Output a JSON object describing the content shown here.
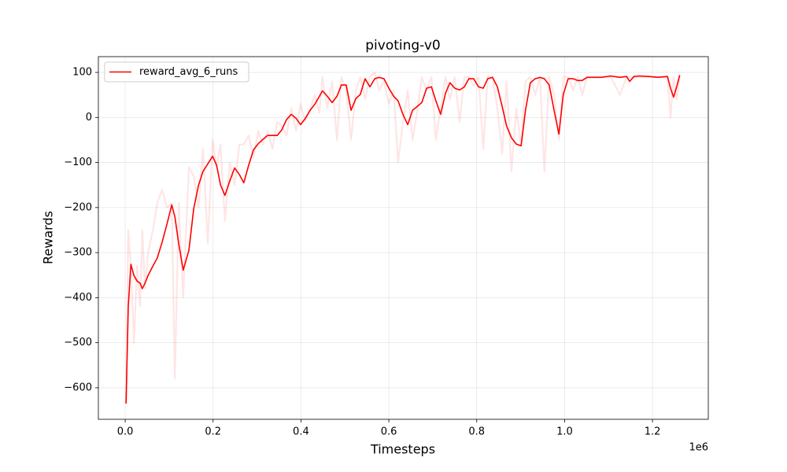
{
  "chart_data": {
    "type": "line",
    "title": "pivoting-v0",
    "x_label": "Timesteps",
    "y_label": "Rewards",
    "x_offset_label": "1e6",
    "xlim": [
      -61000,
      1327000
    ],
    "ylim": [
      -670,
      135
    ],
    "xticks": [
      {
        "value": 0,
        "label": "0.0"
      },
      {
        "value": 200000,
        "label": "0.2"
      },
      {
        "value": 400000,
        "label": "0.4"
      },
      {
        "value": 600000,
        "label": "0.6"
      },
      {
        "value": 800000,
        "label": "0.8"
      },
      {
        "value": 1000000,
        "label": "1.0"
      },
      {
        "value": 1200000,
        "label": "1.2"
      }
    ],
    "yticks": [
      {
        "value": -600,
        "label": "−600"
      },
      {
        "value": -500,
        "label": "−500"
      },
      {
        "value": -400,
        "label": "−400"
      },
      {
        "value": -300,
        "label": "−300"
      },
      {
        "value": -200,
        "label": "−200"
      },
      {
        "value": -100,
        "label": "−100"
      },
      0,
      100
    ],
    "grid": true,
    "legend_position": "upper-left",
    "x": [
      2000,
      7000,
      13000,
      20000,
      27000,
      34000,
      39000,
      45000,
      52000,
      63000,
      73000,
      84000,
      95000,
      106000,
      113000,
      122000,
      132000,
      145000,
      156000,
      167000,
      177000,
      188000,
      199000,
      208000,
      217000,
      227000,
      238000,
      249000,
      260000,
      270000,
      281000,
      292000,
      303000,
      313000,
      324000,
      335000,
      346000,
      356000,
      367000,
      378000,
      389000,
      399000,
      410000,
      421000,
      432000,
      442000,
      449000,
      460000,
      471000,
      482000,
      492000,
      503000,
      514000,
      525000,
      535000,
      546000,
      557000,
      568000,
      578000,
      589000,
      600000,
      611000,
      621000,
      632000,
      643000,
      654000,
      664000,
      675000,
      686000,
      697000,
      707000,
      718000,
      729000,
      739000,
      750000,
      761000,
      772000,
      782000,
      793000,
      804000,
      815000,
      825000,
      836000,
      847000,
      858000,
      868000,
      879000,
      890000,
      901000,
      911000,
      922000,
      933000,
      944000,
      954000,
      965000,
      976000,
      987000,
      997000,
      1008000,
      1019000,
      1030000,
      1040000,
      1051000,
      1062000,
      1083000,
      1105000,
      1126000,
      1141000,
      1148000,
      1158000,
      1169000,
      1191000,
      1212000,
      1234000,
      1241000,
      1248000,
      1255000,
      1262000
    ],
    "series": [
      {
        "color": "#ff0000",
        "opacity": 0.1,
        "values": [
          -635,
          -250,
          -330,
          -500,
          -330,
          -420,
          -250,
          -380,
          -300,
          -250,
          -190,
          -160,
          -200,
          -190,
          -580,
          -190,
          -400,
          -110,
          -130,
          -200,
          -70,
          -280,
          -50,
          -110,
          -60,
          -230,
          -100,
          -150,
          -60,
          -60,
          -40,
          -90,
          -30,
          -60,
          -30,
          -70,
          -10,
          -20,
          -40,
          20,
          -30,
          30,
          -10,
          20,
          50,
          10,
          90,
          20,
          80,
          -50,
          90,
          60,
          -50,
          60,
          90,
          40,
          90,
          100,
          60,
          80,
          30,
          60,
          -100,
          -10,
          60,
          -50,
          10,
          90,
          60,
          90,
          -50,
          20,
          90,
          40,
          90,
          -10,
          90,
          90,
          70,
          90,
          -70,
          90,
          90,
          20,
          -80,
          80,
          -120,
          20,
          -60,
          80,
          90,
          50,
          90,
          -120,
          90,
          50,
          -50,
          90,
          90,
          60,
          90,
          50,
          90,
          90,
          90,
          90,
          50,
          90,
          90,
          90,
          90,
          90,
          90,
          90,
          0,
          90,
          40,
          90
        ]
      },
      {
        "name": "reward_avg_6_runs",
        "color": "#ff0000",
        "opacity": 1,
        "values": [
          -635,
          -420,
          -326,
          -351,
          -363,
          -368,
          -380,
          -368,
          -351,
          -330,
          -312,
          -277,
          -237,
          -194,
          -220,
          -281,
          -339,
          -295,
          -202,
          -150,
          -120,
          -103,
          -86,
          -106,
          -150,
          -173,
          -141,
          -112,
          -127,
          -145,
          -106,
          -72,
          -58,
          -49,
          -40,
          -40,
          -40,
          -28,
          -5,
          7,
          -2,
          -16,
          -2,
          16,
          30,
          47,
          59,
          47,
          33,
          47,
          72,
          72,
          16,
          42,
          51,
          86,
          68,
          86,
          89,
          86,
          65,
          47,
          37,
          7,
          -16,
          16,
          24,
          33,
          65,
          68,
          37,
          7,
          54,
          77,
          65,
          61,
          68,
          86,
          86,
          68,
          65,
          86,
          89,
          68,
          24,
          -19,
          -45,
          -59,
          -63,
          16,
          77,
          86,
          89,
          86,
          72,
          16,
          -37,
          51,
          86,
          86,
          82,
          82,
          89,
          89,
          89,
          92,
          89,
          91,
          80,
          91,
          92,
          91,
          89,
          91,
          65,
          45,
          68,
          94
        ]
      }
    ]
  }
}
